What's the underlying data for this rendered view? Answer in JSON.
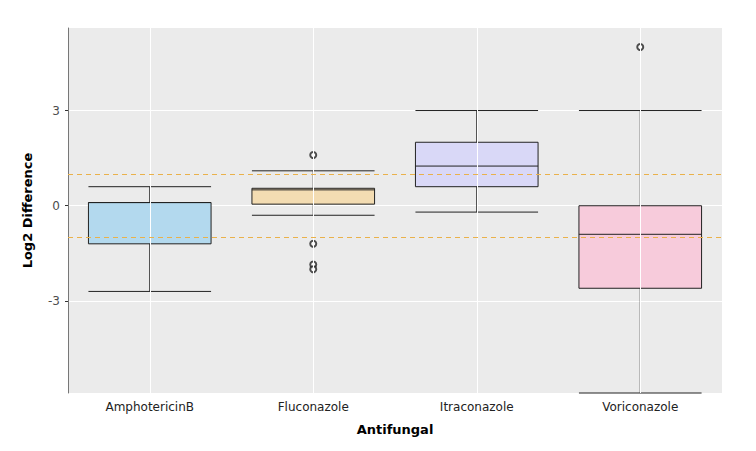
{
  "chart_data": {
    "type": "boxplot",
    "x_label": "Antifungal",
    "y_label": "Log2 Difference",
    "categories": [
      "AmphotericinB",
      "Fluconazole",
      "Itraconazole",
      "Voriconazole"
    ],
    "values": [
      [
        -2.7,
        -1.2,
        0.1,
        0.1,
        0.6
      ],
      [
        -0.3,
        0.05,
        0.5,
        0.55,
        1.1
      ],
      [
        -0.2,
        0.6,
        1.25,
        2.0,
        3.0
      ],
      [
        -5.9,
        -2.6,
        -0.9,
        0.0,
        3.0
      ]
    ],
    "outliers": [
      [],
      [
        1.6,
        -1.2,
        -1.85,
        -2.0
      ],
      [],
      [
        5.0
      ]
    ],
    "colors": [
      "#b3d9ee",
      "#f3dcb2",
      "#d9d8f7",
      "#f7cbdb"
    ],
    "reference_lines": [
      1,
      -1
    ],
    "reference_color": "#eab14a",
    "ylim": [
      -5.9,
      5.6
    ],
    "yticks": [
      -3,
      0,
      3
    ],
    "grid": true
  }
}
